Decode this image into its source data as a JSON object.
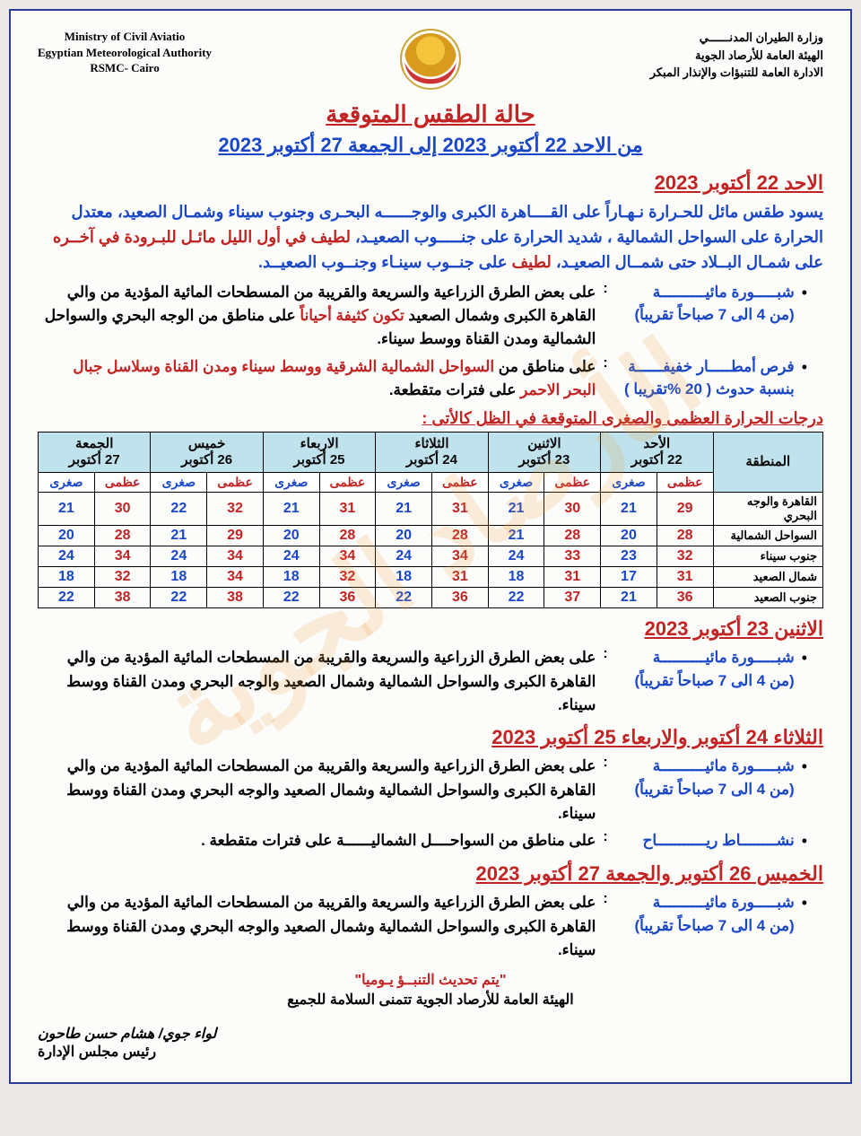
{
  "watermark": "الأرصاد الجوية",
  "header": {
    "en": {
      "l1": "Ministry of Civil Aviatio",
      "l2": "Egyptian Meteorological Authority",
      "l3": "RSMC- Cairo"
    },
    "ar": {
      "l1": "وزارة الطيران المدنــــــي",
      "l2": "الهيئة العامة للأرصاد الجوية",
      "l3": "الادارة العامة للتنبؤات والإنذار المبكر"
    }
  },
  "title_main": "حالة الطقس المتوقعة",
  "title_range": "من الاحد 22 أكتوبر 2023  إلى  الجمعة 27 أكتوبر 2023",
  "day1": {
    "head": "الاحد 22 أكتوبر 2023",
    "p1_a": "يسود طقس مائل للحـرارة نـهـاراً على القــــاهرة الكبرى والوجــــــه البحـرى وجنوب سيناء وشمـال الصعيد،",
    "p2_a": "معتدل الحرارة على السواحل الشمالية ، شديد الحرارة على جنـــــوب الصعيـد،  ",
    "p2_b": "لطيف في أول الليل مائـل للبـرودة في آخــره ",
    "p2_c": "على شمـال البــلاد حتى شمــال الصعيـد،  ",
    "p2_d": "لطيف ",
    "p2_e": "على جنــوب سينـاء وجنــوب الصعيــد.",
    "b1_label": "شبـــــورة مائيــــــــــة",
    "b1_time": "(من 4 الى 7 صباحاً تقريباً)",
    "b1_body_a": "على بعض الطرق الزراعية والسريعة والقريبة من المسطحات المائية المؤدية من والي القاهرة الكبرى وشمال الصعيد ",
    "b1_body_b": "تكون كثيفة أحياناً ",
    "b1_body_c": "على مناطق من الوجه البحري والسواحل الشمالية ومدن القناة ووسط سيناء.",
    "b2_label": "فرص أمطـــــار خفيفــــــة",
    "b2_time": "بنسبة حدوث ( 20 %تقريبا )",
    "b2_body_a": "على مناطق من ",
    "b2_body_b": "السواحل الشمالية الشرقية ووسط سيناء ومدن القناة وسلاسل جبال البحر الاحمر ",
    "b2_body_c": "على فترات متقطعة."
  },
  "table": {
    "caption": "درجات الحرارة العظمى والصغرى المتوقعة في الظل كالأتى :",
    "region_head": "المنطقة",
    "max_lbl": "عظمى",
    "min_lbl": "صغرى",
    "days": [
      {
        "name": "الأحد",
        "date": "22 أكتوبر"
      },
      {
        "name": "الاثنين",
        "date": "23 أكتوبر"
      },
      {
        "name": "الثلاثاء",
        "date": "24 أكتوبر"
      },
      {
        "name": "الاربعاء",
        "date": "25 أكتوبر"
      },
      {
        "name": "خميس",
        "date": "26 أكتوبر"
      },
      {
        "name": "الجمعة",
        "date": "27 أكتوبر"
      }
    ],
    "rows": [
      {
        "region": "القاهرة والوجه البحري",
        "v": [
          [
            29,
            21
          ],
          [
            30,
            21
          ],
          [
            31,
            21
          ],
          [
            31,
            21
          ],
          [
            32,
            22
          ],
          [
            30,
            21
          ]
        ]
      },
      {
        "region": "السواحل الشمالية",
        "v": [
          [
            28,
            20
          ],
          [
            28,
            21
          ],
          [
            28,
            20
          ],
          [
            28,
            20
          ],
          [
            29,
            21
          ],
          [
            28,
            20
          ]
        ]
      },
      {
        "region": "جنوب سيناء",
        "v": [
          [
            32,
            23
          ],
          [
            33,
            24
          ],
          [
            34,
            24
          ],
          [
            34,
            24
          ],
          [
            34,
            24
          ],
          [
            34,
            24
          ]
        ]
      },
      {
        "region": "شمال الصعيد",
        "v": [
          [
            31,
            17
          ],
          [
            31,
            18
          ],
          [
            31,
            18
          ],
          [
            32,
            18
          ],
          [
            34,
            18
          ],
          [
            32,
            18
          ]
        ]
      },
      {
        "region": "جنوب الصعيد",
        "v": [
          [
            36,
            21
          ],
          [
            37,
            22
          ],
          [
            36,
            22
          ],
          [
            36,
            22
          ],
          [
            38,
            22
          ],
          [
            38,
            22
          ]
        ]
      }
    ]
  },
  "day2": {
    "head": "الاثنين 23 أكتوبر 2023",
    "b1_label": "شبـــــورة مائيــــــــــة",
    "b1_time": "(من 4 الى 7 صباحاً تقريباً)",
    "b1_body": "على بعض الطرق الزراعية والسريعة والقريبة من المسطحات المائية المؤدية من والي القاهرة الكبرى والسواحل الشمالية وشمال الصعيد والوجه البحري ومدن القناة ووسط سيناء."
  },
  "day34": {
    "head": "الثلاثاء 24 أكتوبر والاربعاء 25 أكتوبر 2023",
    "b1_label": "شبـــــورة مائيــــــــــة",
    "b1_time": "(من 4 الى 7 صباحاً تقريباً)",
    "b1_body": "على بعض الطرق الزراعية والسريعة والقريبة من المسطحات المائية المؤدية من والي القاهرة الكبرى والسواحل الشمالية وشمال الصعيد والوجه البحري ومدن القناة ووسط سيناء.",
    "b2_label": "نشــــــــاط ريـــــــــــاح",
    "b2_body": "على مناطق من السواحــــل الشماليــــــة على فترات متقطعة ."
  },
  "day56": {
    "head": "الخميس 26 أكتوبر والجمعة 27 أكتوبر 2023",
    "b1_label": "شبـــــورة مائيــــــــــة",
    "b1_time": "(من 4 الى 7 صباحاً تقريباً)",
    "b1_body": "على بعض الطرق الزراعية والسريعة والقريبة من المسطحات المائية المؤدية من والي القاهرة الكبرى والسواحل الشمالية وشمال الصعيد والوجه البحري ومدن القناة ووسط سيناء."
  },
  "footer": {
    "l1": "\"يتم تحديث التنبــؤ يـوميا\"",
    "l2": "الهيئة العامة للأرصاد الجوية تتمنى السلامة للجميع"
  },
  "sign": {
    "l1": "لواء جوي/ هشام حسن طاحون",
    "l2": "رئيس مجلس الإدارة"
  },
  "colors": {
    "blue": "#1947c7",
    "red": "#c22323",
    "header_bg": "#bfe2ec",
    "border": "#2a3c9a"
  }
}
